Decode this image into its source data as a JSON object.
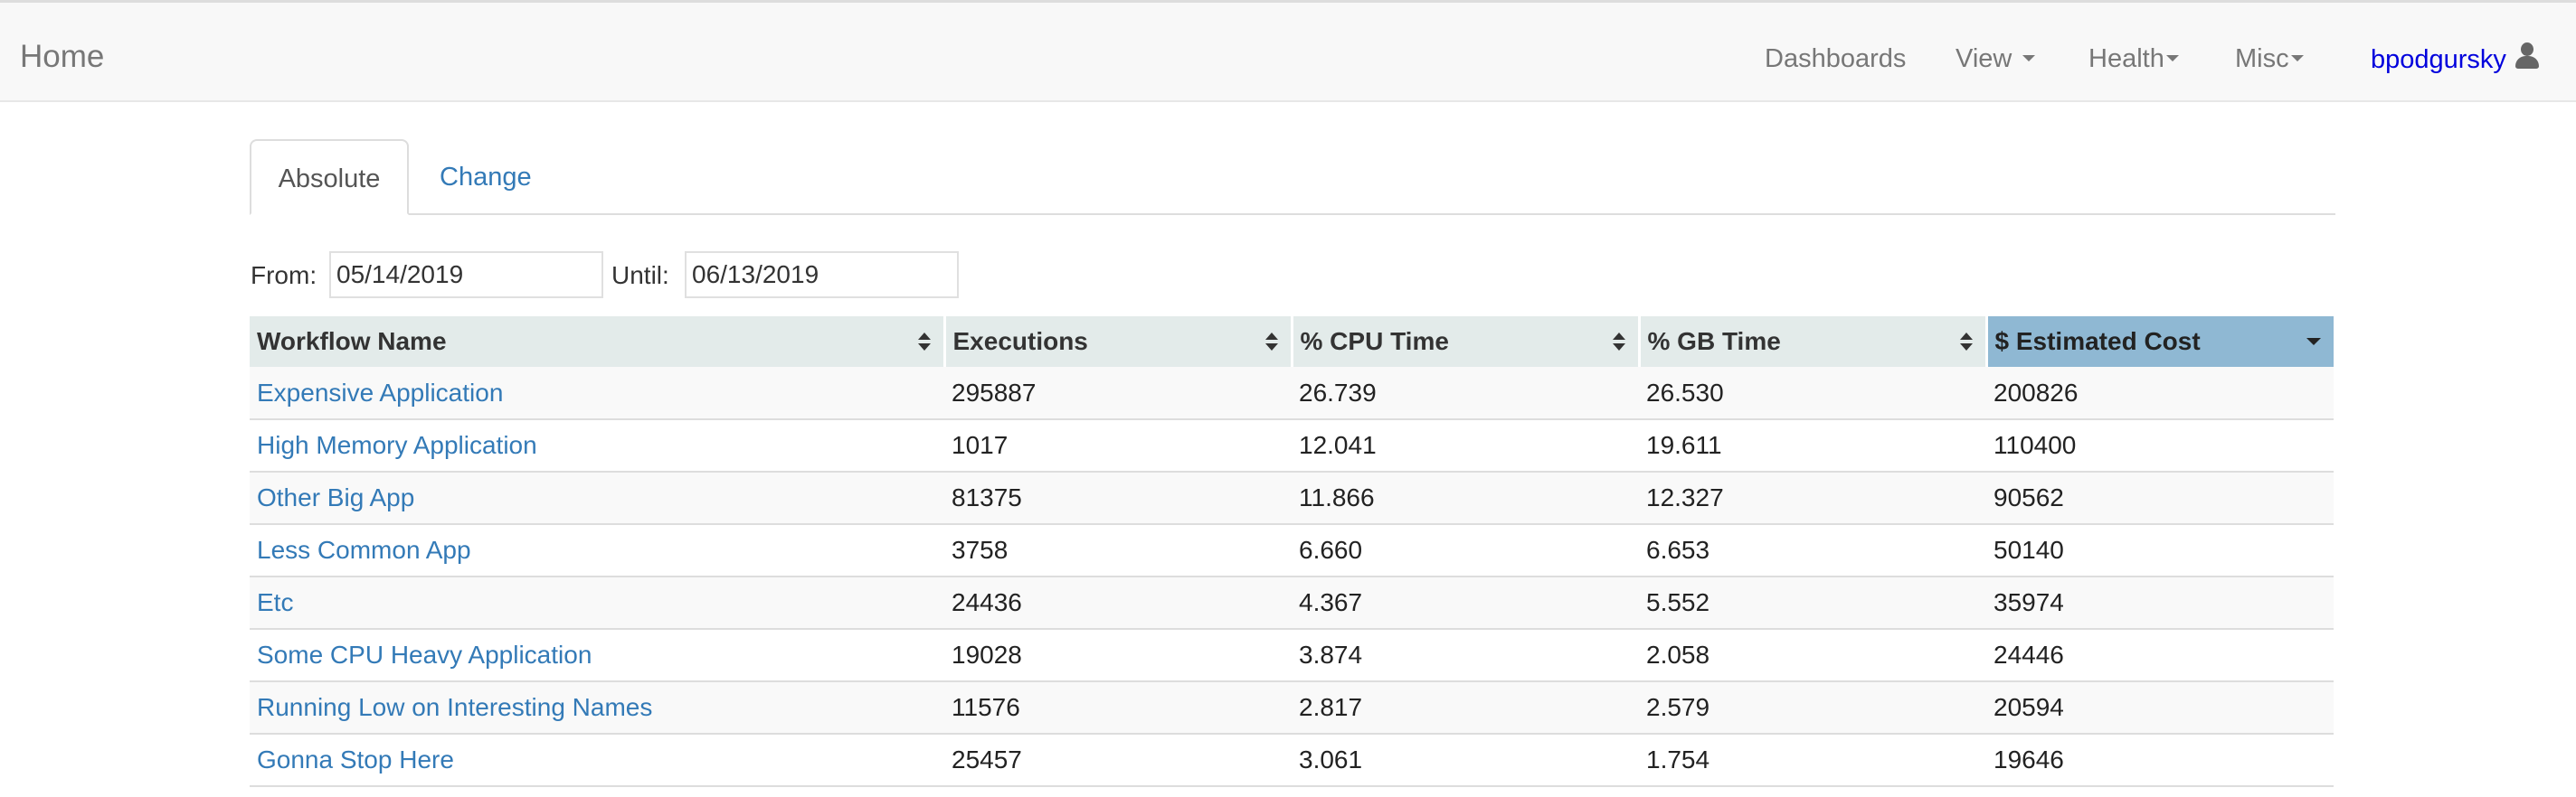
{
  "navbar": {
    "brand": "Home",
    "items": [
      {
        "label": "Dashboards"
      },
      {
        "label": "View"
      },
      {
        "label": "Health"
      },
      {
        "label": "Misc"
      }
    ],
    "user": "bpodgursky"
  },
  "tabs": [
    {
      "label": "Absolute",
      "active": true
    },
    {
      "label": "Change",
      "active": false
    }
  ],
  "filters": {
    "from_label": "From:",
    "from_value": "05/14/2019",
    "until_label": "Until:",
    "until_value": "06/13/2019"
  },
  "table": {
    "columns": [
      "Workflow Name",
      "Executions",
      "% CPU Time",
      "% GB Time",
      "$ Estimated Cost"
    ],
    "sorted_column": "$ Estimated Cost",
    "sort_direction": "descending",
    "rows": [
      {
        "name": "Expensive Application",
        "executions": "295887",
        "cpu": "26.739",
        "gb": "26.530",
        "cost": "200826"
      },
      {
        "name": "High Memory Application",
        "executions": "1017",
        "cpu": "12.041",
        "gb": "19.611",
        "cost": "110400"
      },
      {
        "name": "Other Big App",
        "executions": "81375",
        "cpu": "11.866",
        "gb": "12.327",
        "cost": "90562"
      },
      {
        "name": "Less Common App",
        "executions": "3758",
        "cpu": "6.660",
        "gb": "6.653",
        "cost": "50140"
      },
      {
        "name": "Etc",
        "executions": "24436",
        "cpu": "4.367",
        "gb": "5.552",
        "cost": "35974"
      },
      {
        "name": "Some CPU Heavy Application",
        "executions": "19028",
        "cpu": "3.874",
        "gb": "2.058",
        "cost": "24446"
      },
      {
        "name": "Running Low on Interesting Names",
        "executions": "11576",
        "cpu": "2.817",
        "gb": "2.579",
        "cost": "20594"
      },
      {
        "name": "Gonna Stop Here",
        "executions": "25457",
        "cpu": "3.061",
        "gb": "1.754",
        "cost": "19646"
      }
    ]
  },
  "colors": {
    "link": "#337ab7",
    "user_link": "#0000dd",
    "header_bg": "#e3ebea",
    "sorted_header_bg": "#8fb8d3"
  },
  "icons": {
    "user": "user-icon",
    "sort": "sort-both-icon",
    "sort_desc": "sort-desc-icon",
    "dropdown": "caret-down-icon"
  }
}
